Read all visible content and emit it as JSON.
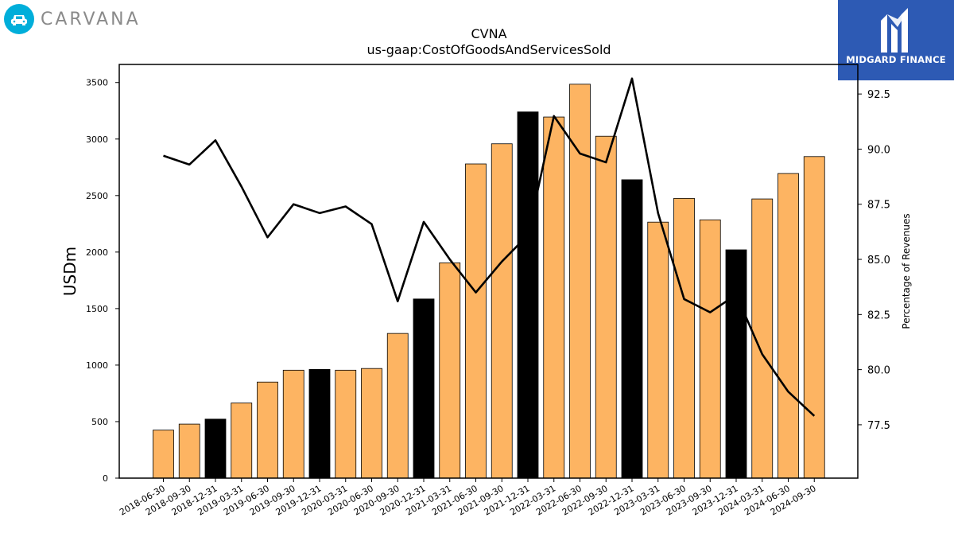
{
  "branding": {
    "company_logo_text": "CARVANA",
    "company_logo_icon": "car-icon",
    "publisher_name": "MIDGARD FINANCE",
    "publisher_logo_icon": "midgard-m-logo-icon",
    "publisher_bg_color": "#2d5ab4",
    "company_bg_color": "#00aeda"
  },
  "chart_data": {
    "type": "bar",
    "title": "CVNA",
    "subtitle": "us-gaap:CostOfGoodsAndServicesSold",
    "ylabel": "USDm",
    "ylabel_right": "Percentage of Revenues",
    "ylim": [
      0,
      3660
    ],
    "ylim_right": [
      75.08,
      93.84
    ],
    "yticks": [
      "0",
      "500",
      "1000",
      "1500",
      "2000",
      "2500",
      "3000",
      "3500"
    ],
    "yticks_right": [
      "77.5",
      "80.0",
      "82.5",
      "85.0",
      "87.5",
      "90.0",
      "92.5"
    ],
    "grid": false,
    "categories": [
      "2018-06-30",
      "2018-09-30",
      "2018-12-31",
      "2019-03-31",
      "2019-06-30",
      "2019-09-30",
      "2019-12-31",
      "2020-03-31",
      "2020-06-30",
      "2020-09-30",
      "2020-12-31",
      "2021-03-31",
      "2021-06-30",
      "2021-09-30",
      "2021-12-31",
      "2022-03-31",
      "2022-06-30",
      "2022-09-30",
      "2022-12-31",
      "2023-03-31",
      "2023-06-30",
      "2023-09-30",
      "2023-12-31",
      "2024-03-31",
      "2024-06-30",
      "2024-09-30"
    ],
    "series": [
      {
        "kind": "bar",
        "axis": "left",
        "values": [
          425,
          478,
          522,
          665,
          850,
          955,
          962,
          955,
          970,
          1280,
          1585,
          1905,
          2780,
          2958,
          3240,
          3195,
          3485,
          3025,
          2640,
          2265,
          2475,
          2285,
          2020,
          2470,
          2695,
          2845
        ],
        "colors": [
          "#fdb462",
          "#fdb462",
          "#000000",
          "#fdb462",
          "#fdb462",
          "#fdb462",
          "#000000",
          "#fdb462",
          "#fdb462",
          "#fdb462",
          "#000000",
          "#fdb462",
          "#fdb462",
          "#fdb462",
          "#000000",
          "#fdb462",
          "#fdb462",
          "#fdb462",
          "#000000",
          "#fdb462",
          "#fdb462",
          "#fdb462",
          "#000000",
          "#fdb462",
          "#fdb462",
          "#fdb462"
        ]
      },
      {
        "kind": "line",
        "axis": "right",
        "color": "#000000",
        "values": [
          89.7,
          89.3,
          90.4,
          88.3,
          86.0,
          87.5,
          87.1,
          87.4,
          86.6,
          83.1,
          86.7,
          85.0,
          83.5,
          84.9,
          86.1,
          91.5,
          89.8,
          89.4,
          93.2,
          87.1,
          83.2,
          82.6,
          83.4,
          80.7,
          79.0,
          77.9
        ]
      }
    ]
  }
}
